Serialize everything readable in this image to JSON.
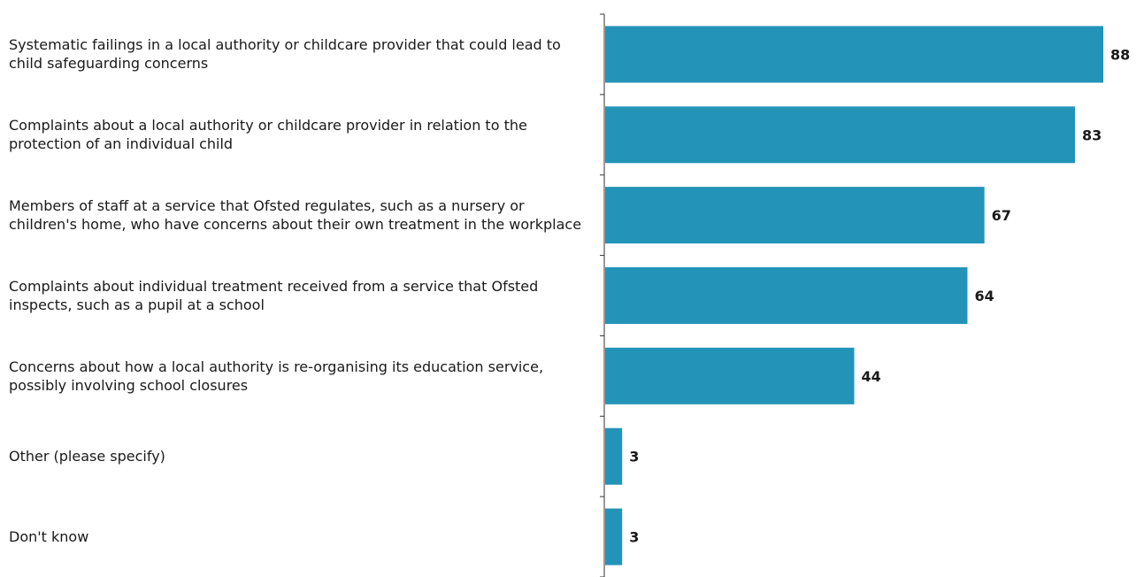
{
  "chart_data": {
    "type": "bar",
    "orientation": "horizontal",
    "categories": [
      "Systematic failings in a local authority or childcare provider that could lead to child safeguarding concerns",
      "Complaints about a local authority or childcare provider in relation to the protection of an individual child",
      "Members of staff at a service that Ofsted regulates, such as a nursery or children's home, who have concerns about their own treatment in the workplace",
      "Complaints about individual treatment received from a service that Ofsted inspects, such as a pupil at a school",
      "Concerns about how a local authority is re-organising its education service, possibly involving school closures",
      "Other (please specify)",
      "Don't know"
    ],
    "values": [
      88,
      83,
      67,
      64,
      44,
      3,
      3
    ],
    "title": "",
    "xlabel": "",
    "ylabel": "",
    "xlim": [
      0,
      88
    ],
    "grid": false,
    "bar_color": "#2493b8",
    "label_color": "#1a1a1a"
  }
}
